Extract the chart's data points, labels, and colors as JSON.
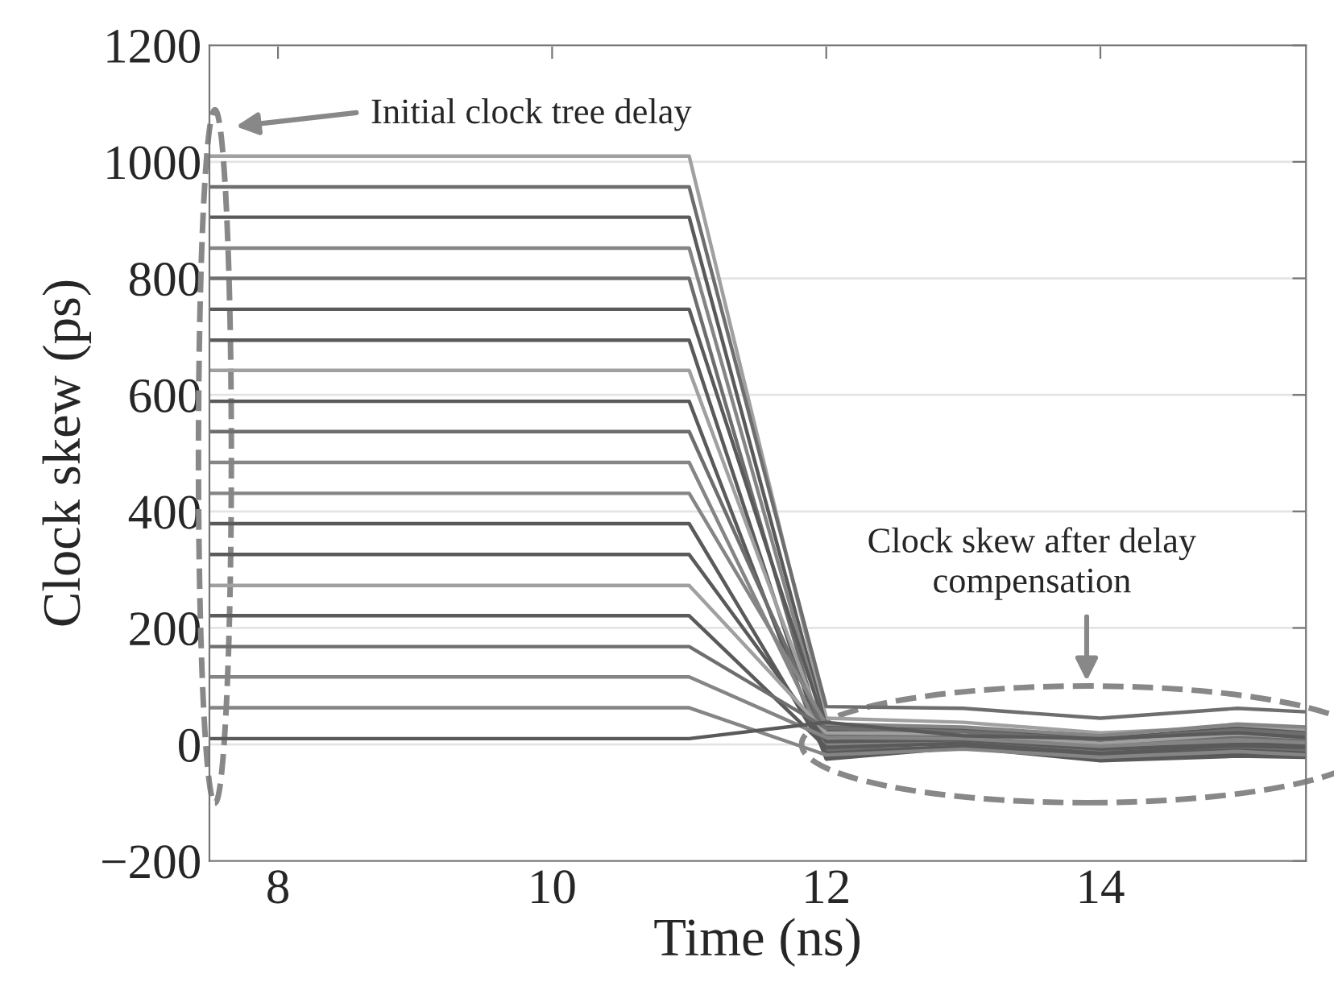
{
  "chart_data": {
    "type": "line",
    "xlabel": "Time (ns)",
    "ylabel": "Clock skew (ps)",
    "x": [
      7.5,
      11,
      12,
      13,
      14,
      15,
      15.5
    ],
    "xlim": [
      7.5,
      15.5
    ],
    "xticks": [
      8,
      10,
      12,
      14
    ],
    "ylim": [
      -200,
      1200
    ],
    "yticks": [
      {
        "value": -200,
        "label": "−200"
      },
      0,
      200,
      400,
      600,
      800,
      1000,
      1200
    ],
    "grid": "y",
    "legend": false,
    "marker": "none",
    "line_style": "solid",
    "series": [
      {
        "color": "#a0a0a0",
        "values": [
          1010,
          1010,
          45,
          38,
          20,
          30,
          25
        ]
      },
      {
        "color": "#6e6e6e",
        "values": [
          957,
          957,
          65,
          62,
          45,
          62,
          56
        ]
      },
      {
        "color": "#5a5a5a",
        "values": [
          905,
          905,
          30,
          25,
          10,
          28,
          20
        ]
      },
      {
        "color": "#858585",
        "values": [
          852,
          852,
          20,
          15,
          0,
          15,
          10
        ]
      },
      {
        "color": "#6e6e6e",
        "values": [
          800,
          800,
          -10,
          -5,
          -20,
          -5,
          -10
        ]
      },
      {
        "color": "#5a5a5a",
        "values": [
          747,
          747,
          25,
          20,
          5,
          20,
          15
        ]
      },
      {
        "color": "#5a5a5a",
        "values": [
          694,
          694,
          -20,
          -5,
          -25,
          -15,
          -20
        ]
      },
      {
        "color": "#a0a0a0",
        "values": [
          642,
          642,
          10,
          10,
          -5,
          10,
          5
        ]
      },
      {
        "color": "#5a5a5a",
        "values": [
          589,
          589,
          -25,
          -5,
          -28,
          -20,
          -22
        ]
      },
      {
        "color": "#6e6e6e",
        "values": [
          537,
          537,
          15,
          12,
          0,
          12,
          8
        ]
      },
      {
        "color": "#858585",
        "values": [
          484,
          484,
          0,
          5,
          -10,
          5,
          0
        ]
      },
      {
        "color": "#858585",
        "values": [
          431,
          431,
          35,
          30,
          15,
          35,
          30
        ]
      },
      {
        "color": "#5a5a5a",
        "values": [
          379,
          379,
          -15,
          -3,
          -18,
          -10,
          -15
        ]
      },
      {
        "color": "#5a5a5a",
        "values": [
          326,
          326,
          5,
          8,
          -8,
          0,
          0
        ]
      },
      {
        "color": "#a0a0a0",
        "values": [
          273,
          273,
          20,
          18,
          2,
          18,
          12
        ]
      },
      {
        "color": "#5a5a5a",
        "values": [
          221,
          221,
          -5,
          2,
          -15,
          -2,
          -5
        ]
      },
      {
        "color": "#6e6e6e",
        "values": [
          168,
          168,
          28,
          22,
          8,
          25,
          18
        ]
      },
      {
        "color": "#858585",
        "values": [
          116,
          116,
          12,
          10,
          -3,
          8,
          3
        ]
      },
      {
        "color": "#858585",
        "values": [
          63,
          63,
          -18,
          -8,
          -22,
          -12,
          -18
        ]
      },
      {
        "color": "#5a5a5a",
        "values": [
          10,
          10,
          38,
          15,
          10,
          20,
          12
        ]
      }
    ],
    "annotations": [
      "Initial clock tree delay",
      "Clock skew after delay\ncompensation"
    ]
  }
}
